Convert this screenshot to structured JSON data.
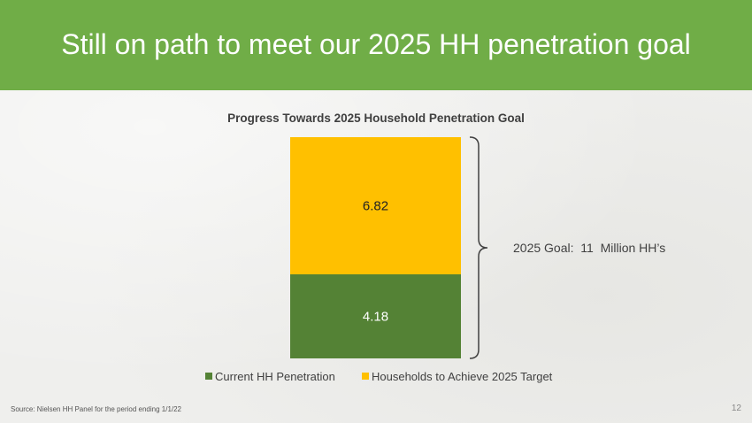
{
  "slide": {
    "title": "Still on path to meet our 2025 HH penetration goal",
    "source": "Source:  Nielsen HH Panel for the period ending 1/1/22",
    "page_number": "12"
  },
  "colors": {
    "header": "#70ad47",
    "current": "#548235",
    "remaining": "#ffc000",
    "background": "#efefed"
  },
  "chart_data": {
    "type": "bar",
    "stacked": true,
    "title": "Progress Towards 2025 Household Penetration Goal",
    "categories": [
      ""
    ],
    "series": [
      {
        "name": "Current HH Penetration",
        "values": [
          4.18
        ],
        "label": "4.18",
        "color": "#548235"
      },
      {
        "name": "Households to Achieve 2025 Target",
        "values": [
          6.82
        ],
        "label": "6.82",
        "color": "#ffc000"
      }
    ],
    "ylim": [
      0,
      11
    ],
    "grid": false,
    "legend_position": "bottom",
    "annotation": "2025 Goal:  11  Million HH’s"
  }
}
